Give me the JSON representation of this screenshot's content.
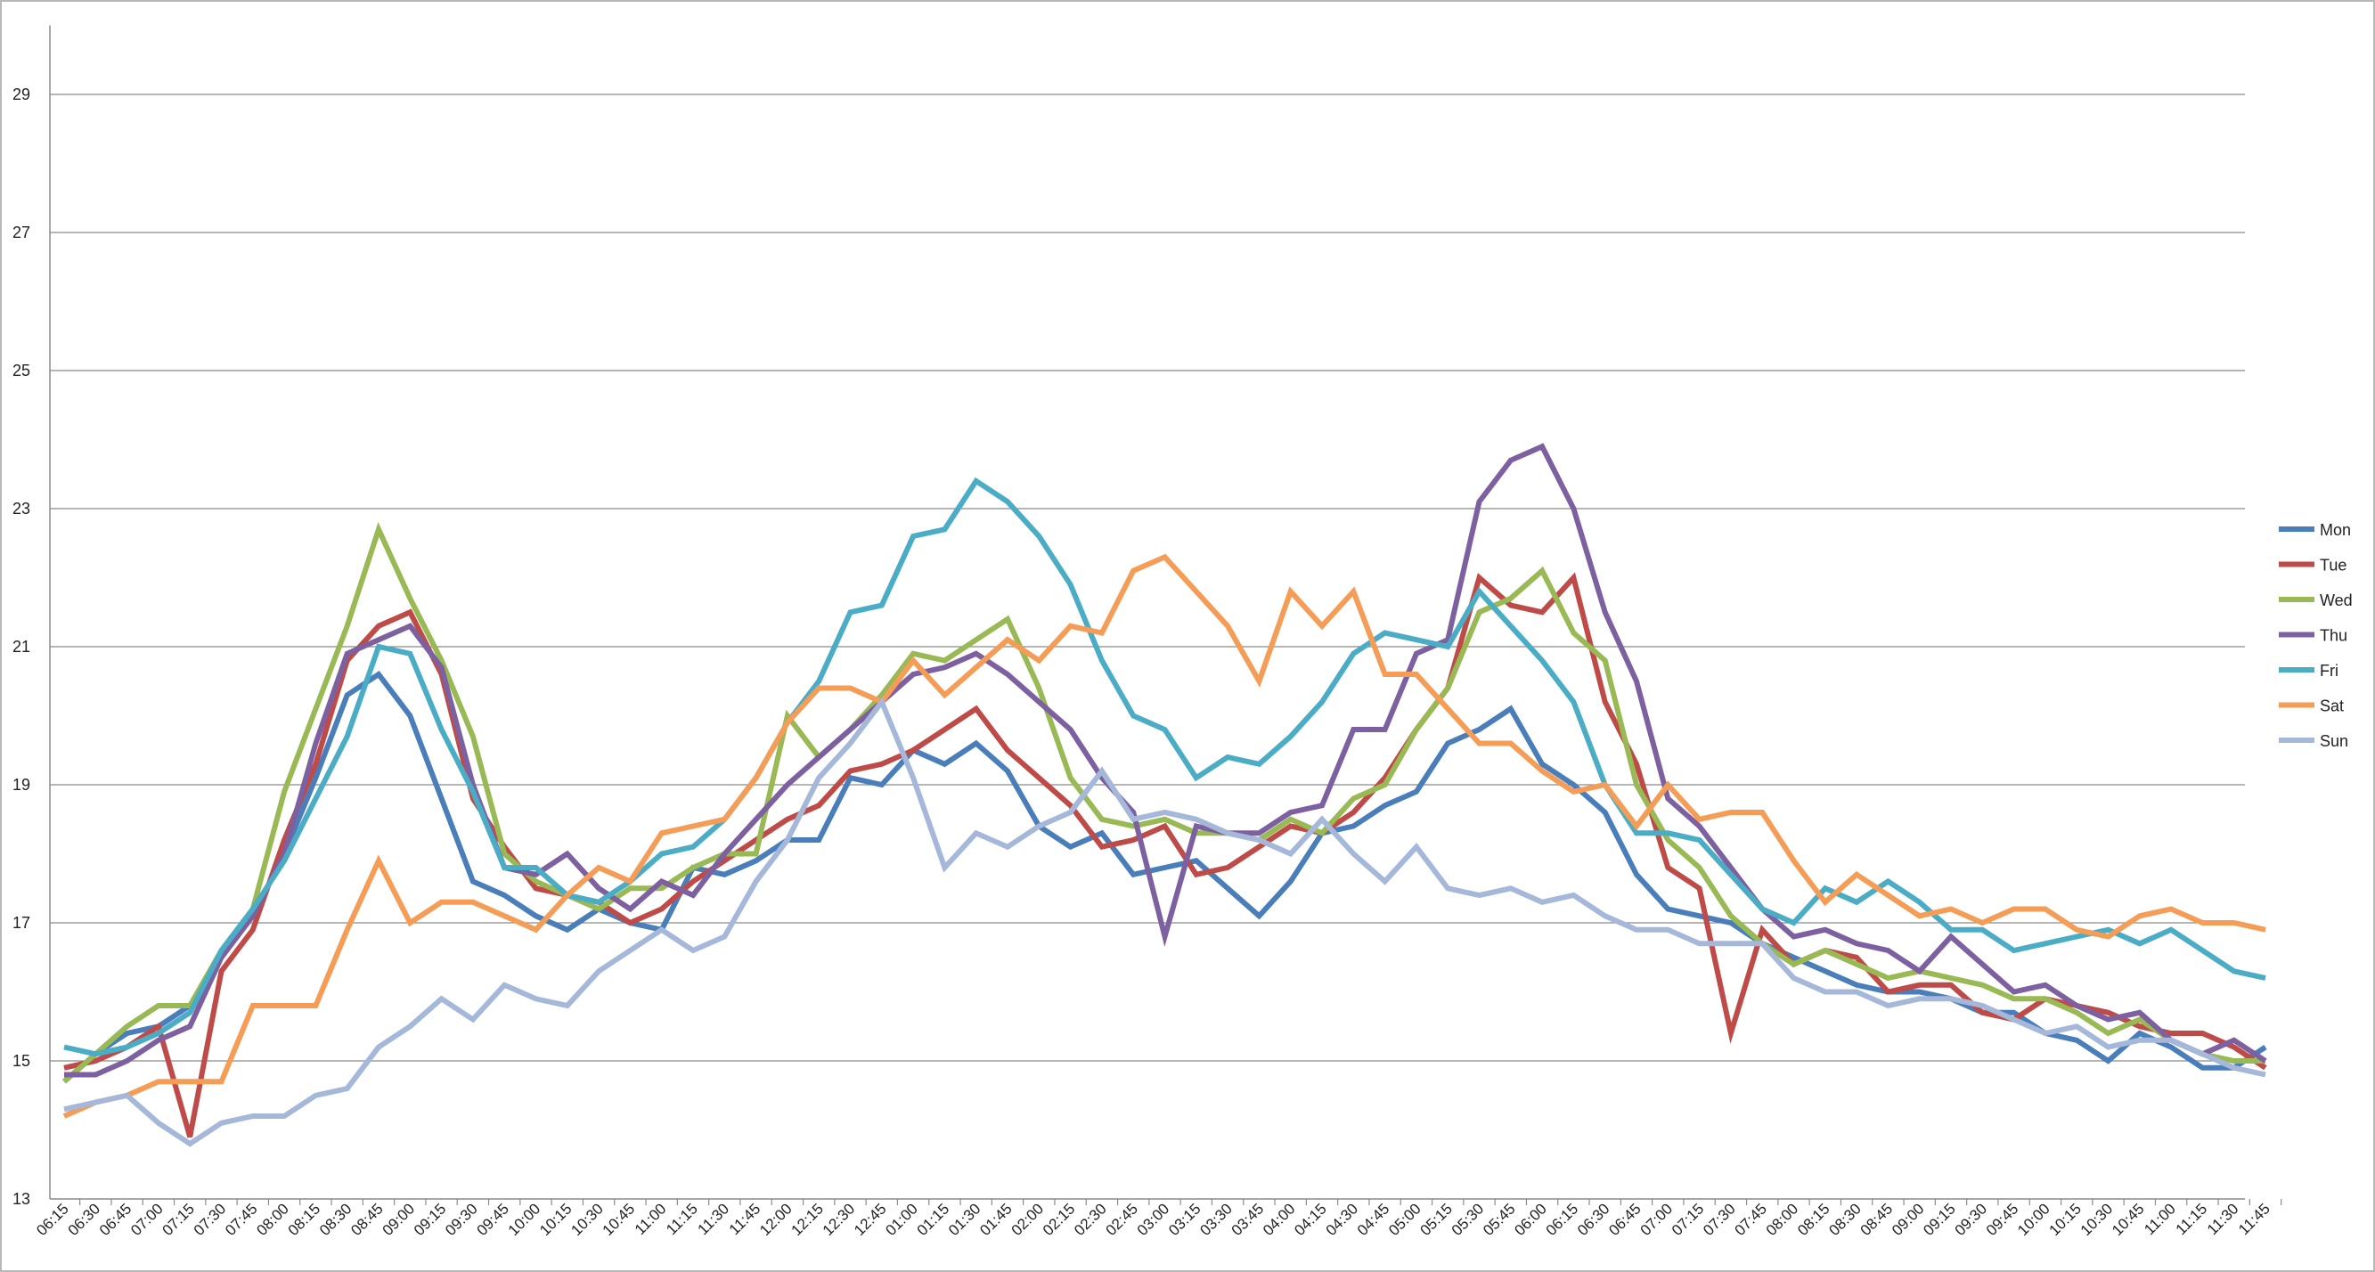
{
  "chart_data": {
    "type": "line",
    "title": "",
    "xlabel": "",
    "ylabel": "",
    "ylim": [
      13,
      30
    ],
    "yticks": [
      13,
      15,
      17,
      19,
      21,
      23,
      25,
      27,
      29
    ],
    "grid": true,
    "legend": "right",
    "categories": [
      "06:15",
      "06:30",
      "06:45",
      "07:00",
      "07:15",
      "07:30",
      "07:45",
      "08:00",
      "08:15",
      "08:30",
      "08:45",
      "09:00",
      "09:15",
      "09:30",
      "09:45",
      "10:00",
      "10:15",
      "10:30",
      "10:45",
      "11:00",
      "11:15",
      "11:30",
      "11:45",
      "12:00",
      "12:15",
      "12:30",
      "12:45",
      "01:00",
      "01:15",
      "01:30",
      "01:45",
      "02:00",
      "02:15",
      "02:30",
      "02:45",
      "03:00",
      "03:15",
      "03:30",
      "03:45",
      "04:00",
      "04:15",
      "04:30",
      "04:45",
      "05:00",
      "05:15",
      "05:30",
      "05:45",
      "06:00",
      "06:15",
      "06:30",
      "06:45",
      "07:00",
      "07:15",
      "07:30",
      "07:45",
      "08:00",
      "08:15",
      "08:30",
      "08:45",
      "09:00",
      "09:15",
      "09:30",
      "09:45",
      "10:00",
      "10:15",
      "10:30",
      "10:45",
      "11:00",
      "11:15",
      "11:30",
      "11:45"
    ],
    "series": [
      {
        "name": "Mon",
        "color": "#4a7ebb",
        "values": [
          14.7,
          15.1,
          15.4,
          15.5,
          15.8,
          16.5,
          17.1,
          18.0,
          19.1,
          20.3,
          20.6,
          20.0,
          18.8,
          17.6,
          17.4,
          17.1,
          16.9,
          17.2,
          17.0,
          16.9,
          17.8,
          17.7,
          17.9,
          18.2,
          18.2,
          19.1,
          19.0,
          19.5,
          19.3,
          19.6,
          19.2,
          18.4,
          18.1,
          18.3,
          17.7,
          17.8,
          17.9,
          17.5,
          17.1,
          17.6,
          18.3,
          18.4,
          18.7,
          18.9,
          19.6,
          19.8,
          20.1,
          19.3,
          19.0,
          18.6,
          17.7,
          17.2,
          17.1,
          17.0,
          16.7,
          16.5,
          16.3,
          16.1,
          16.0,
          16.0,
          15.9,
          15.7,
          15.7,
          15.4,
          15.3,
          15.0,
          15.4,
          15.2,
          14.9,
          14.9,
          15.2
        ]
      },
      {
        "name": "Tue",
        "color": "#be4b48",
        "values": [
          14.9,
          15.0,
          15.2,
          15.5,
          13.9,
          16.3,
          16.9,
          18.2,
          19.3,
          20.8,
          21.3,
          21.5,
          20.6,
          18.8,
          18.1,
          17.5,
          17.4,
          17.3,
          17.0,
          17.2,
          17.6,
          17.9,
          18.2,
          18.5,
          18.7,
          19.2,
          19.3,
          19.5,
          19.8,
          20.1,
          19.5,
          19.1,
          18.7,
          18.1,
          18.2,
          18.4,
          17.7,
          17.8,
          18.1,
          18.4,
          18.3,
          18.6,
          19.1,
          19.8,
          20.4,
          22.0,
          21.6,
          21.5,
          22.0,
          20.2,
          19.3,
          17.8,
          17.5,
          15.4,
          16.9,
          16.4,
          16.6,
          16.5,
          16.0,
          16.1,
          16.1,
          15.7,
          15.6,
          15.9,
          15.8,
          15.7,
          15.5,
          15.4,
          15.4,
          15.2,
          14.9
        ]
      },
      {
        "name": "Wed",
        "color": "#98b954",
        "values": [
          14.7,
          15.1,
          15.5,
          15.8,
          15.8,
          16.6,
          17.2,
          18.9,
          20.1,
          21.3,
          22.7,
          21.7,
          20.8,
          19.7,
          18.0,
          17.6,
          17.4,
          17.2,
          17.5,
          17.5,
          17.8,
          18.0,
          18.0,
          20.0,
          19.4,
          19.8,
          20.3,
          20.9,
          20.8,
          21.1,
          21.4,
          20.4,
          19.1,
          18.5,
          18.4,
          18.5,
          18.3,
          18.3,
          18.2,
          18.5,
          18.3,
          18.8,
          19.0,
          19.8,
          20.4,
          21.5,
          21.7,
          22.1,
          21.2,
          20.8,
          19.0,
          18.2,
          17.8,
          17.1,
          16.7,
          16.4,
          16.6,
          16.4,
          16.2,
          16.3,
          16.2,
          16.1,
          15.9,
          15.9,
          15.7,
          15.4,
          15.6,
          15.3,
          15.1,
          15.0,
          15.0
        ]
      },
      {
        "name": "Thu",
        "color": "#7d60a0",
        "values": [
          14.8,
          14.8,
          15.0,
          15.3,
          15.5,
          16.5,
          17.1,
          18.0,
          19.6,
          20.9,
          21.1,
          21.3,
          20.7,
          19.0,
          17.8,
          17.7,
          18.0,
          17.5,
          17.2,
          17.6,
          17.4,
          18.0,
          18.5,
          19.0,
          19.4,
          19.8,
          20.2,
          20.6,
          20.7,
          20.9,
          20.6,
          20.2,
          19.8,
          19.1,
          18.6,
          16.8,
          18.4,
          18.3,
          18.3,
          18.6,
          18.7,
          19.8,
          19.8,
          20.9,
          21.1,
          23.1,
          23.7,
          23.9,
          23.0,
          21.5,
          20.5,
          18.8,
          18.4,
          17.8,
          17.2,
          16.8,
          16.9,
          16.7,
          16.6,
          16.3,
          16.8,
          16.4,
          16.0,
          16.1,
          15.8,
          15.6,
          15.7,
          15.3,
          15.1,
          15.3,
          15.0
        ]
      },
      {
        "name": "Fri",
        "color": "#4bacc6",
        "values": [
          15.2,
          15.1,
          15.2,
          15.4,
          15.7,
          16.6,
          17.2,
          17.9,
          18.8,
          19.7,
          21.0,
          20.9,
          19.8,
          18.9,
          17.8,
          17.8,
          17.4,
          17.3,
          17.6,
          18.0,
          18.1,
          18.5,
          19.1,
          19.9,
          20.5,
          21.5,
          21.6,
          22.6,
          22.7,
          23.4,
          23.1,
          22.6,
          21.9,
          20.8,
          20.0,
          19.8,
          19.1,
          19.4,
          19.3,
          19.7,
          20.2,
          20.9,
          21.2,
          21.1,
          21.0,
          21.8,
          21.3,
          20.8,
          20.2,
          19.0,
          18.3,
          18.3,
          18.2,
          17.7,
          17.2,
          17.0,
          17.5,
          17.3,
          17.6,
          17.3,
          16.9,
          16.9,
          16.6,
          16.7,
          16.8,
          16.9,
          16.7,
          16.9,
          16.6,
          16.3,
          16.2
        ]
      },
      {
        "name": "Sat",
        "color": "#f59d56",
        "values": [
          14.2,
          14.4,
          14.5,
          14.7,
          14.7,
          14.7,
          15.8,
          15.8,
          15.8,
          16.9,
          17.9,
          17.0,
          17.3,
          17.3,
          17.1,
          16.9,
          17.4,
          17.8,
          17.6,
          18.3,
          18.4,
          18.5,
          19.1,
          19.9,
          20.4,
          20.4,
          20.2,
          20.8,
          20.3,
          20.7,
          21.1,
          20.8,
          21.3,
          21.2,
          22.1,
          22.3,
          21.8,
          21.3,
          20.5,
          21.8,
          21.3,
          21.8,
          20.6,
          20.6,
          20.1,
          19.6,
          19.6,
          19.2,
          18.9,
          19.0,
          18.4,
          19.0,
          18.5,
          18.6,
          18.6,
          17.9,
          17.3,
          17.7,
          17.4,
          17.1,
          17.2,
          17.0,
          17.2,
          17.2,
          16.9,
          16.8,
          17.1,
          17.2,
          17.0,
          17.0,
          16.9
        ]
      },
      {
        "name": "Sun",
        "color": "#a5b8da",
        "values": [
          14.3,
          14.4,
          14.5,
          14.1,
          13.8,
          14.1,
          14.2,
          14.2,
          14.5,
          14.6,
          15.2,
          15.5,
          15.9,
          15.6,
          16.1,
          15.9,
          15.8,
          16.3,
          16.6,
          16.9,
          16.6,
          16.8,
          17.6,
          18.2,
          19.1,
          19.6,
          20.2,
          19.1,
          17.8,
          18.3,
          18.1,
          18.4,
          18.6,
          19.2,
          18.5,
          18.6,
          18.5,
          18.3,
          18.2,
          18.0,
          18.5,
          18.0,
          17.6,
          18.1,
          17.5,
          17.4,
          17.5,
          17.3,
          17.4,
          17.1,
          16.9,
          16.9,
          16.7,
          16.7,
          16.7,
          16.2,
          16.0,
          16.0,
          15.8,
          15.9,
          15.9,
          15.8,
          15.6,
          15.4,
          15.5,
          15.2,
          15.3,
          15.3,
          15.1,
          14.9,
          14.8
        ]
      }
    ]
  }
}
